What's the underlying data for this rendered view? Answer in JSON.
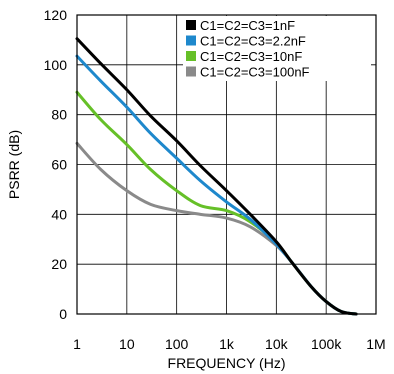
{
  "chart_data": {
    "type": "line",
    "xlabel": "FREQUENCY (Hz)",
    "ylabel": "PSRR (dB)",
    "x_scale": "log",
    "xlim": [
      1,
      1000000
    ],
    "ylim": [
      0,
      120
    ],
    "grid": true,
    "legend_position": "top-right",
    "x_ticks": [
      {
        "value": 1,
        "label": "1"
      },
      {
        "value": 10,
        "label": "10"
      },
      {
        "value": 100,
        "label": "100"
      },
      {
        "value": 1000,
        "label": "1k"
      },
      {
        "value": 10000,
        "label": "10k"
      },
      {
        "value": 100000,
        "label": "100k"
      },
      {
        "value": 1000000,
        "label": "1M"
      }
    ],
    "y_ticks": [
      {
        "value": 0,
        "label": "0"
      },
      {
        "value": 20,
        "label": "20"
      },
      {
        "value": 40,
        "label": "40"
      },
      {
        "value": 60,
        "label": "60"
      },
      {
        "value": 80,
        "label": "80"
      },
      {
        "value": 100,
        "label": "100"
      },
      {
        "value": 120,
        "label": "120"
      }
    ],
    "series": [
      {
        "name": "C1=C2=C3=1nF",
        "color": "#000000",
        "points": [
          [
            1,
            110.5
          ],
          [
            3,
            100.5
          ],
          [
            10,
            90
          ],
          [
            30,
            79.5
          ],
          [
            100,
            69.5
          ],
          [
            300,
            59.5
          ],
          [
            1000,
            49.5
          ],
          [
            3000,
            40
          ],
          [
            10000,
            29
          ],
          [
            20000,
            21
          ],
          [
            50000,
            11
          ],
          [
            100000,
            5
          ],
          [
            200000,
            1
          ],
          [
            400000,
            0
          ]
        ]
      },
      {
        "name": "C1=C2=C3=2.2nF",
        "color": "#1e88cc",
        "points": [
          [
            1,
            103.5
          ],
          [
            3,
            93.5
          ],
          [
            10,
            83
          ],
          [
            30,
            72.5
          ],
          [
            100,
            62.5
          ],
          [
            300,
            53.5
          ],
          [
            1000,
            45
          ],
          [
            3000,
            38
          ],
          [
            10000,
            28
          ],
          [
            20000,
            21
          ],
          [
            50000,
            11
          ],
          [
            100000,
            5
          ],
          [
            200000,
            1
          ],
          [
            400000,
            0
          ]
        ]
      },
      {
        "name": "C1=C2=C3=10nF",
        "color": "#66c028",
        "points": [
          [
            1,
            89
          ],
          [
            3,
            78
          ],
          [
            10,
            68
          ],
          [
            30,
            58
          ],
          [
            100,
            49.5
          ],
          [
            300,
            43.5
          ],
          [
            1000,
            41.5
          ],
          [
            3000,
            37
          ],
          [
            10000,
            28.5
          ],
          [
            20000,
            21
          ],
          [
            50000,
            11
          ],
          [
            100000,
            5
          ],
          [
            200000,
            1
          ],
          [
            400000,
            0
          ]
        ]
      },
      {
        "name": "C1=C2=C3=100nF",
        "color": "#8a8a8a",
        "points": [
          [
            1,
            68.5
          ],
          [
            3,
            58
          ],
          [
            10,
            49.5
          ],
          [
            30,
            44
          ],
          [
            100,
            41.5
          ],
          [
            300,
            40
          ],
          [
            1000,
            38.5
          ],
          [
            3000,
            35
          ],
          [
            10000,
            27.5
          ],
          [
            20000,
            21
          ],
          [
            50000,
            11
          ],
          [
            100000,
            5
          ],
          [
            200000,
            1
          ],
          [
            400000,
            0
          ]
        ]
      }
    ]
  }
}
